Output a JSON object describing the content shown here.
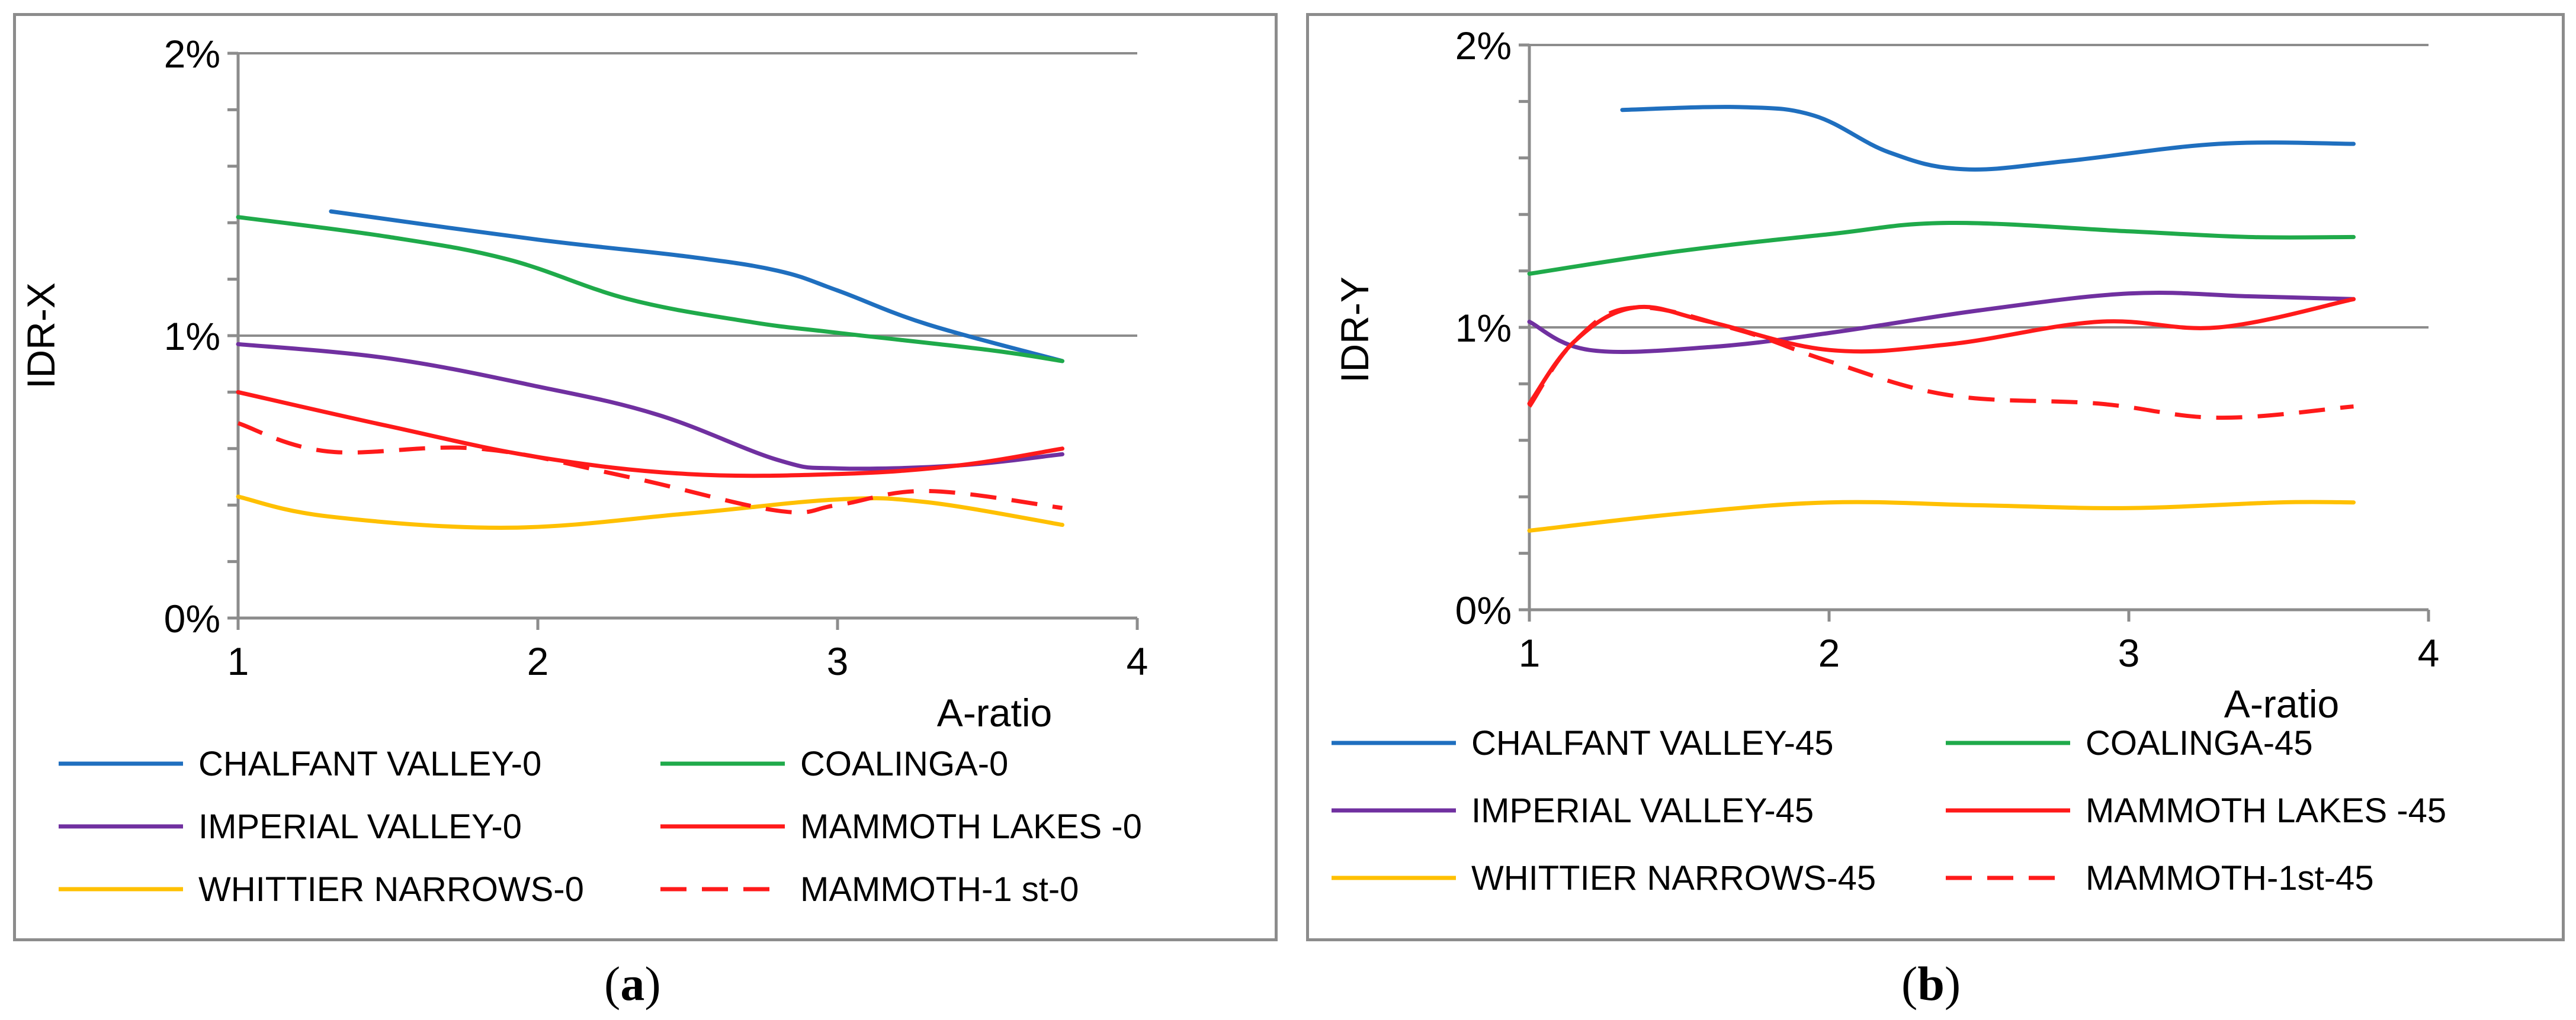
{
  "captions": {
    "a": "a",
    "b": "b"
  },
  "chart_data": [
    {
      "panel": "a",
      "type": "line",
      "title": "",
      "xlabel": "A-ratio",
      "ylabel": "IDR-X",
      "xlim": [
        1,
        4
      ],
      "ylim": [
        0,
        2
      ],
      "xticks": [
        1,
        2,
        3,
        4
      ],
      "xtick_labels": [
        "1",
        "2",
        "3",
        "4"
      ],
      "yticks": [
        0,
        1,
        2
      ],
      "ytick_labels": [
        "0%",
        "1%",
        "2%"
      ],
      "legend_position": "bottom",
      "series": [
        {
          "name": "CHALFANT VALLEY-0",
          "color": "#1f6fbf",
          "dash": false,
          "x": [
            1.31,
            2.0,
            2.5,
            2.8,
            3.0,
            3.3,
            3.75
          ],
          "y": [
            1.44,
            1.34,
            1.28,
            1.23,
            1.16,
            1.04,
            0.91
          ]
        },
        {
          "name": "COALINGA-0",
          "color": "#1faa4a",
          "dash": false,
          "x": [
            1.0,
            1.5,
            1.9,
            2.3,
            2.7,
            3.0,
            3.5,
            3.75
          ],
          "y": [
            1.42,
            1.35,
            1.27,
            1.13,
            1.05,
            1.01,
            0.95,
            0.91
          ]
        },
        {
          "name": "IMPERIAL VALLEY-0",
          "color": "#7030a0",
          "dash": false,
          "x": [
            1.0,
            1.5,
            2.0,
            2.4,
            2.8,
            3.0,
            3.4,
            3.75
          ],
          "y": [
            0.97,
            0.92,
            0.82,
            0.72,
            0.56,
            0.53,
            0.54,
            0.58
          ]
        },
        {
          "name": "MAMMOTH LAKES -0",
          "color": "#ff1a1a",
          "dash": false,
          "x": [
            1.0,
            1.5,
            2.0,
            2.5,
            3.0,
            3.4,
            3.75
          ],
          "y": [
            0.8,
            0.68,
            0.57,
            0.51,
            0.51,
            0.54,
            0.6
          ]
        },
        {
          "name": "WHITTIER NARROWS-0",
          "color": "#ffc000",
          "dash": false,
          "x": [
            1.0,
            1.3,
            1.9,
            2.5,
            3.0,
            3.3,
            3.75
          ],
          "y": [
            0.43,
            0.36,
            0.32,
            0.37,
            0.42,
            0.41,
            0.33
          ]
        },
        {
          "name": "MAMMOTH-1 st-0",
          "color": "#ff1a1a",
          "dash": true,
          "x": [
            1.0,
            1.3,
            1.8,
            2.3,
            2.8,
            3.0,
            3.3,
            3.75
          ],
          "y": [
            0.69,
            0.59,
            0.6,
            0.5,
            0.38,
            0.4,
            0.45,
            0.39
          ]
        }
      ]
    },
    {
      "panel": "b",
      "type": "line",
      "title": "",
      "xlabel": "A-ratio",
      "ylabel": "IDR-Y",
      "xlim": [
        1,
        4
      ],
      "ylim": [
        0,
        2
      ],
      "xticks": [
        1,
        2,
        3,
        4
      ],
      "xtick_labels": [
        "1",
        "2",
        "3",
        "4"
      ],
      "yticks": [
        0,
        1,
        2
      ],
      "ytick_labels": [
        "0%",
        "1%",
        "2%"
      ],
      "legend_position": "bottom",
      "series": [
        {
          "name": "CHALFANT VALLEY-45",
          "color": "#1f6fbf",
          "dash": false,
          "x": [
            1.31,
            1.7,
            1.95,
            2.2,
            2.45,
            2.8,
            3.3,
            3.75
          ],
          "y": [
            1.77,
            1.78,
            1.75,
            1.62,
            1.56,
            1.59,
            1.65,
            1.65
          ]
        },
        {
          "name": "COALINGA-45",
          "color": "#1faa4a",
          "dash": false,
          "x": [
            1.0,
            1.5,
            2.0,
            2.4,
            3.0,
            3.4,
            3.75
          ],
          "y": [
            1.19,
            1.27,
            1.33,
            1.37,
            1.34,
            1.32,
            1.32
          ]
        },
        {
          "name": "IMPERIAL VALLEY-45",
          "color": "#7030a0",
          "dash": false,
          "x": [
            1.0,
            1.2,
            1.6,
            2.0,
            2.5,
            3.0,
            3.4,
            3.75
          ],
          "y": [
            1.02,
            0.92,
            0.93,
            0.98,
            1.06,
            1.12,
            1.11,
            1.1
          ]
        },
        {
          "name": "MAMMOTH LAKES -45",
          "color": "#ff1a1a",
          "dash": false,
          "x": [
            1.0,
            1.15,
            1.35,
            1.6,
            2.0,
            2.4,
            2.9,
            3.3,
            3.75
          ],
          "y": [
            0.73,
            0.95,
            1.07,
            1.02,
            0.92,
            0.94,
            1.02,
            1.0,
            1.1
          ]
        },
        {
          "name": "WHITTIER NARROWS-45",
          "color": "#ffc000",
          "dash": false,
          "x": [
            1.0,
            1.5,
            2.0,
            2.5,
            3.0,
            3.5,
            3.75
          ],
          "y": [
            0.28,
            0.34,
            0.38,
            0.37,
            0.36,
            0.38,
            0.38
          ]
        },
        {
          "name": "MAMMOTH-1st-45",
          "color": "#ff1a1a",
          "dash": true,
          "x": [
            1.0,
            1.15,
            1.35,
            1.7,
            2.0,
            2.4,
            2.9,
            3.3,
            3.75
          ],
          "y": [
            0.72,
            0.95,
            1.07,
            0.99,
            0.88,
            0.76,
            0.73,
            0.68,
            0.72
          ]
        }
      ]
    }
  ]
}
